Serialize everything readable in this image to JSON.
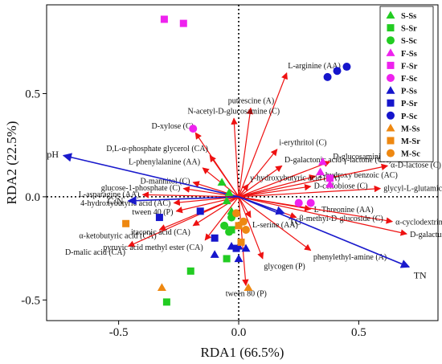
{
  "chart_data": {
    "type": "scatter",
    "xlabel": "RDA1 (66.5%)",
    "ylabel": "RDA2 (22.5%)",
    "xlim": [
      -0.8,
      0.83
    ],
    "ylim": [
      -0.6,
      0.93
    ],
    "xticks": [
      -0.5,
      0.0,
      0.5
    ],
    "yticks": [
      -0.5,
      0.0,
      0.5
    ],
    "tick_labels": {
      "x": [
        "-0.5",
        "0.0",
        "0.5"
      ],
      "y": [
        "-0.5",
        "0.0",
        "0.5"
      ]
    },
    "grid": false,
    "zero_lines": true,
    "legend_position": "top-right",
    "sample_groups": [
      {
        "name": "S-Ss",
        "color": "#22cc22",
        "marker": "triangle",
        "points": [
          [
            -0.07,
            0.07
          ],
          [
            -0.04,
            0.02
          ],
          [
            -0.03,
            -0.07
          ],
          [
            -0.05,
            -0.02
          ]
        ]
      },
      {
        "name": "S-Sr",
        "color": "#22cc22",
        "marker": "square",
        "points": [
          [
            -0.3,
            -0.51
          ],
          [
            -0.2,
            -0.36
          ],
          [
            -0.05,
            -0.3
          ],
          [
            -0.03,
            -0.16
          ]
        ]
      },
      {
        "name": "S-Sc",
        "color": "#22cc22",
        "marker": "circle",
        "points": [
          [
            -0.04,
            -0.17
          ],
          [
            -0.03,
            -0.1
          ],
          [
            -0.06,
            -0.14
          ]
        ]
      },
      {
        "name": "F-Ss",
        "color": "#ee22ee",
        "marker": "triangle",
        "points": [
          [
            0.35,
            0.17
          ],
          [
            0.34,
            0.12
          ],
          [
            0.38,
            0.06
          ]
        ]
      },
      {
        "name": "F-Sr",
        "color": "#ee22ee",
        "marker": "square",
        "points": [
          [
            -0.31,
            0.86
          ],
          [
            -0.23,
            0.84
          ],
          [
            0.38,
            0.09
          ]
        ]
      },
      {
        "name": "F-Sc",
        "color": "#ee22ee",
        "marker": "circle",
        "points": [
          [
            -0.19,
            0.33
          ],
          [
            0.3,
            -0.03
          ],
          [
            0.25,
            -0.03
          ]
        ]
      },
      {
        "name": "P-Ss",
        "color": "#1515cc",
        "marker": "triangle",
        "points": [
          [
            -0.03,
            -0.24
          ],
          [
            0.0,
            -0.24
          ],
          [
            0.03,
            -0.25
          ],
          [
            -0.1,
            -0.28
          ],
          [
            0.0,
            -0.3
          ]
        ]
      },
      {
        "name": "P-Sr",
        "color": "#1515cc",
        "marker": "square",
        "points": [
          [
            -0.33,
            -0.1
          ],
          [
            -0.16,
            -0.07
          ],
          [
            -0.1,
            -0.2
          ],
          [
            -0.01,
            -0.25
          ]
        ]
      },
      {
        "name": "P-Sc",
        "color": "#1515cc",
        "marker": "circle",
        "points": [
          [
            0.37,
            0.58
          ],
          [
            0.41,
            0.61
          ],
          [
            0.45,
            0.63
          ]
        ]
      },
      {
        "name": "M-Ss",
        "color": "#ee8811",
        "marker": "triangle",
        "points": [
          [
            -0.32,
            -0.44
          ],
          [
            0.04,
            -0.44
          ],
          [
            0.0,
            -0.14
          ]
        ]
      },
      {
        "name": "M-Sr",
        "color": "#ee8811",
        "marker": "square",
        "points": [
          [
            -0.47,
            -0.13
          ],
          [
            0.0,
            -0.14
          ],
          [
            0.01,
            -0.22
          ]
        ]
      },
      {
        "name": "M-Sc",
        "color": "#ee8811",
        "marker": "circle",
        "points": [
          [
            -0.01,
            -0.08
          ],
          [
            0.02,
            -0.12
          ],
          [
            0.03,
            -0.16
          ]
        ]
      }
    ],
    "red_vectors": [
      {
        "label": "L-arginine (AA)",
        "x": 0.2,
        "y": 0.6
      },
      {
        "label": "putrescine (A)",
        "x": 0.05,
        "y": 0.43
      },
      {
        "label": "N-acetyl-D-glucosamine (C)",
        "x": -0.02,
        "y": 0.38
      },
      {
        "label": "D-xylose (C)",
        "x": -0.18,
        "y": 0.31
      },
      {
        "label": "D,L-α-phosphate glycerol (CA)",
        "x": -0.12,
        "y": 0.2
      },
      {
        "label": "L-phenylalanine (AA)",
        "x": -0.15,
        "y": 0.14
      },
      {
        "label": "D-mannitol (C)",
        "x": -0.19,
        "y": 0.07
      },
      {
        "label": "glucose-1-phosphate (C)",
        "x": -0.23,
        "y": 0.04
      },
      {
        "label": "L-asparagine (AA)",
        "x": -0.4,
        "y": 0.01
      },
      {
        "label": "4-hydroxybutyric acid (AC)",
        "x": -0.27,
        "y": -0.03
      },
      {
        "label": "tween 40 (P)",
        "x": -0.26,
        "y": -0.07
      },
      {
        "label": "α-ketobutyric acid (CA)",
        "x": -0.33,
        "y": -0.16
      },
      {
        "label": "D-malic acid (CA)",
        "x": -0.46,
        "y": -0.24
      },
      {
        "label": "itaconic acid (CA)",
        "x": -0.19,
        "y": -0.14
      },
      {
        "label": "pyruvic acid methyl ester (CA)",
        "x": -0.14,
        "y": -0.21
      },
      {
        "label": "i-erythritol (C)",
        "x": 0.16,
        "y": 0.23
      },
      {
        "label": "D-galactonic acid γ-lactone (CA)",
        "x": 0.18,
        "y": 0.15
      },
      {
        "label": "D-glucosaminic acid (CA)",
        "x": 0.38,
        "y": 0.17
      },
      {
        "label": "2-hydroxy benzoic (AC)",
        "x": 0.32,
        "y": 0.1
      },
      {
        "label": "α-D-lactose (C)",
        "x": 0.62,
        "y": 0.15
      },
      {
        "label": "γ-hydroxybutyric acid (CA)",
        "x": 0.04,
        "y": 0.06
      },
      {
        "label": "glycyl-L-glutamic acid (AA)",
        "x": 0.59,
        "y": 0.04
      },
      {
        "label": "D-cellobiose (C)",
        "x": 0.3,
        "y": 0.05
      },
      {
        "label": "L-Threonine (AA)",
        "x": 0.3,
        "y": -0.06
      },
      {
        "label": "α-cyclodextrin (P)",
        "x": 0.64,
        "y": -0.12
      },
      {
        "label": "β-methyl-D-glucoside (C)",
        "x": 0.24,
        "y": -0.1
      },
      {
        "label": "D-galacturonic acid (CA)",
        "x": 0.7,
        "y": -0.18
      },
      {
        "label": "phenylethyl-amine (A)",
        "x": 0.3,
        "y": -0.26
      },
      {
        "label": "L-serine (AA)",
        "x": 0.05,
        "y": -0.1
      },
      {
        "label": "glycogen (P)",
        "x": 0.1,
        "y": -0.3
      },
      {
        "label": "tween 80 (P)",
        "x": 0.03,
        "y": -0.43
      }
    ],
    "blue_vectors": [
      {
        "label": "pH",
        "x": -0.73,
        "y": 0.2
      },
      {
        "label": "C/N",
        "x": -0.46,
        "y": -0.02
      },
      {
        "label": "TC",
        "x": 0.19,
        "y": -0.08
      },
      {
        "label": "TN",
        "x": 0.71,
        "y": -0.34
      }
    ]
  }
}
